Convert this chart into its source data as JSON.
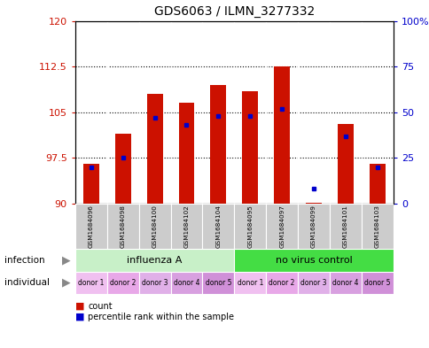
{
  "title": "GDS6063 / ILMN_3277332",
  "samples": [
    "GSM1684096",
    "GSM1684098",
    "GSM1684100",
    "GSM1684102",
    "GSM1684104",
    "GSM1684095",
    "GSM1684097",
    "GSM1684099",
    "GSM1684101",
    "GSM1684103"
  ],
  "count_values": [
    96.5,
    101.5,
    108.0,
    106.5,
    109.5,
    108.5,
    112.5,
    90.2,
    103.0,
    96.5
  ],
  "percentile_values": [
    20,
    25,
    47,
    43,
    48,
    48,
    52,
    8,
    37,
    20
  ],
  "ymin": 90,
  "ymax": 120,
  "yticks": [
    90,
    97.5,
    105,
    112.5,
    120
  ],
  "ytick_labels": [
    "90",
    "97.5",
    "105",
    "112.5",
    "120"
  ],
  "y2min": 0,
  "y2max": 100,
  "y2ticks": [
    0,
    25,
    50,
    75,
    100
  ],
  "y2tick_labels": [
    "0",
    "25",
    "50",
    "75",
    "100%"
  ],
  "bar_color": "#cc1100",
  "dot_color": "#0000cc",
  "infection_groups": [
    {
      "label": "influenza A",
      "start": 0,
      "end": 5,
      "color": "#c8f0c8"
    },
    {
      "label": "no virus control",
      "start": 5,
      "end": 10,
      "color": "#44dd44"
    }
  ],
  "individual_labels": [
    "donor 1",
    "donor 2",
    "donor 3",
    "donor 4",
    "donor 5",
    "donor 1",
    "donor 2",
    "donor 3",
    "donor 4",
    "donor 5"
  ],
  "individual_colors": [
    "#f0c0f0",
    "#e8a8e8",
    "#e0b0e8",
    "#d8a0e0",
    "#d090d8",
    "#f0c0f0",
    "#e8a8e8",
    "#e0b0e8",
    "#d8a0e0",
    "#d090d8"
  ],
  "sample_bg_color": "#cccccc",
  "left_label_color": "#cc1100",
  "right_label_color": "#0000cc"
}
